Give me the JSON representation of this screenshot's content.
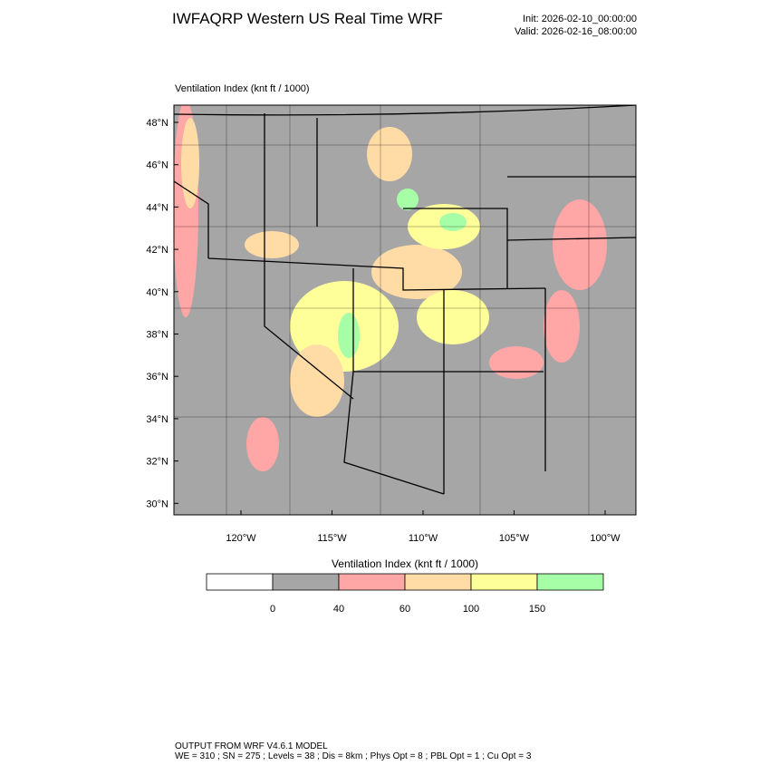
{
  "header": {
    "title": "IWFAQRP Western US Real Time WRF",
    "init": "Init: 2026-02-10_00:00:00",
    "valid": "Valid: 2026-02-16_08:00:00"
  },
  "map": {
    "label": "Ventilation Index   (knt ft / 1000)",
    "lat_labels": [
      "48°N",
      "46°N",
      "44°N",
      "42°N",
      "40°N",
      "38°N",
      "36°N",
      "34°N",
      "32°N",
      "30°N"
    ],
    "lon_labels": [
      "120°W",
      "115°W",
      "110°W",
      "105°W",
      "100°W"
    ]
  },
  "colorbar": {
    "title": "Ventilation Index   (knt ft / 1000)",
    "colors": [
      "#ffffff",
      "#a6a6a6",
      "#ffa6a6",
      "#ffdba6",
      "#ffff9a",
      "#a6ffa6"
    ],
    "levels": [
      0,
      40,
      60,
      100,
      150
    ]
  },
  "footer": {
    "line1": "OUTPUT FROM WRF V4.6.1 MODEL",
    "line2": "WE = 310 ; SN = 275 ; Levels = 38 ; Dis = 8km ; Phys Opt = 8 ; PBL Opt = 1 ; Cu Opt = 3"
  }
}
